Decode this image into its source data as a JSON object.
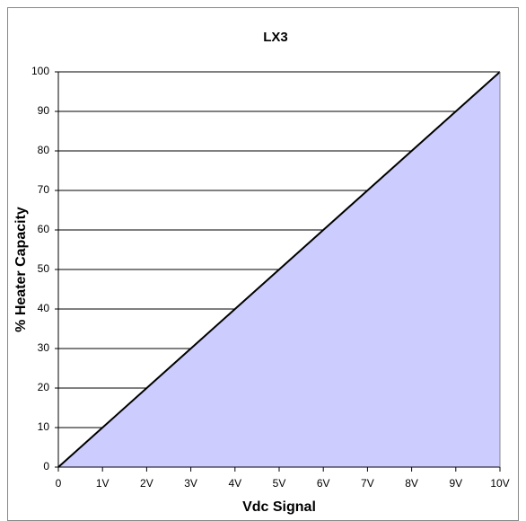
{
  "chart_data": {
    "type": "area",
    "title": "LX3",
    "x_label": "Vdc Signal",
    "y_label": "% Heater Capacity",
    "categories": [
      "0",
      "1V",
      "2V",
      "3V",
      "4V",
      "5V",
      "6V",
      "7V",
      "8V",
      "9V",
      "10V"
    ],
    "series": [
      {
        "name": "LX3",
        "color": "#ccccff",
        "values": [
          0,
          10,
          20,
          30,
          40,
          50,
          60,
          70,
          80,
          90,
          100
        ]
      }
    ],
    "ylim": [
      0,
      100
    ],
    "yticks": [
      0,
      10,
      20,
      30,
      40,
      50,
      60,
      70,
      80,
      90,
      100
    ],
    "grid": true
  }
}
